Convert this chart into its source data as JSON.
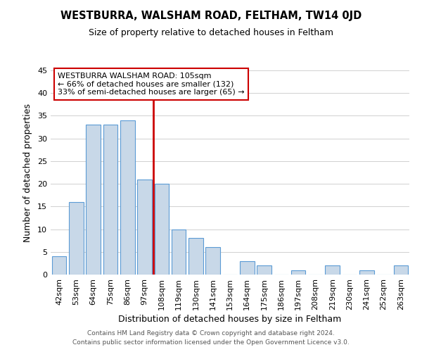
{
  "title": "WESTBURRA, WALSHAM ROAD, FELTHAM, TW14 0JD",
  "subtitle": "Size of property relative to detached houses in Feltham",
  "xlabel": "Distribution of detached houses by size in Feltham",
  "ylabel": "Number of detached properties",
  "bar_labels": [
    "42sqm",
    "53sqm",
    "64sqm",
    "75sqm",
    "86sqm",
    "97sqm",
    "108sqm",
    "119sqm",
    "130sqm",
    "141sqm",
    "153sqm",
    "164sqm",
    "175sqm",
    "186sqm",
    "197sqm",
    "208sqm",
    "219sqm",
    "230sqm",
    "241sqm",
    "252sqm",
    "263sqm"
  ],
  "bar_values": [
    4,
    16,
    33,
    33,
    34,
    21,
    20,
    10,
    8,
    6,
    0,
    3,
    2,
    0,
    1,
    0,
    2,
    0,
    1,
    0,
    2
  ],
  "bar_color": "#c8d8e8",
  "bar_edge_color": "#5b9bd5",
  "vline_color": "#cc0000",
  "vline_x": 5.5,
  "ylim": [
    0,
    45
  ],
  "annotation_title": "WESTBURRA WALSHAM ROAD: 105sqm",
  "annotation_line1": "← 66% of detached houses are smaller (132)",
  "annotation_line2": "33% of semi-detached houses are larger (65) →",
  "footer1": "Contains HM Land Registry data © Crown copyright and database right 2024.",
  "footer2": "Contains public sector information licensed under the Open Government Licence v3.0.",
  "background_color": "#ffffff",
  "plot_bg_color": "#ffffff",
  "grid_color": "#d0d0d0"
}
